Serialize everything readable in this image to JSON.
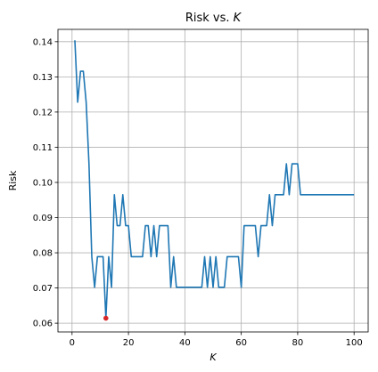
{
  "chart_data": {
    "type": "line",
    "title": "Risk vs. K",
    "title_main": "Risk vs. ",
    "title_var": "K",
    "xlabel": "K",
    "ylabel": "Risk",
    "xlim": [
      -5,
      105
    ],
    "ylim": [
      0.0575,
      0.1435
    ],
    "xticks": [
      0,
      20,
      40,
      60,
      80,
      100
    ],
    "yticks": [
      0.06,
      0.07,
      0.08,
      0.09,
      0.1,
      0.11,
      0.12,
      0.13,
      0.14
    ],
    "ytick_labels": [
      "0.06",
      "0.07",
      "0.08",
      "0.09",
      "0.10",
      "0.11",
      "0.12",
      "0.13",
      "0.14"
    ],
    "grid": true,
    "line_color": "#1f77b4",
    "marker_color": "#d62728",
    "highlight_point": {
      "x": 12,
      "y": 0.0614
    },
    "series": [
      {
        "x": [
          1,
          2,
          3,
          4,
          5,
          6,
          7,
          8,
          9,
          10,
          11,
          12,
          13,
          14,
          15,
          16,
          17,
          18,
          19,
          20,
          21,
          22,
          23,
          24,
          25,
          26,
          27,
          28,
          29,
          30,
          31,
          32,
          33,
          34,
          35,
          36,
          37,
          38,
          39,
          40,
          41,
          42,
          43,
          44,
          45,
          46,
          47,
          48,
          49,
          50,
          51,
          52,
          53,
          54,
          55,
          56,
          57,
          58,
          59,
          60,
          61,
          62,
          63,
          64,
          65,
          66,
          67,
          68,
          69,
          70,
          71,
          72,
          73,
          74,
          75,
          76,
          77,
          78,
          79,
          80,
          81,
          82,
          83,
          84,
          85,
          86,
          87,
          88,
          89,
          90,
          91,
          92,
          93,
          94,
          95,
          96,
          97,
          98,
          99,
          100
        ],
        "values": [
          0.1404,
          0.1228,
          0.1316,
          0.1316,
          0.1228,
          0.1053,
          0.0789,
          0.0702,
          0.0789,
          0.0789,
          0.0789,
          0.0614,
          0.0789,
          0.0702,
          0.0965,
          0.0877,
          0.0877,
          0.0965,
          0.0877,
          0.0877,
          0.0789,
          0.0789,
          0.0789,
          0.0789,
          0.0789,
          0.0877,
          0.0877,
          0.0789,
          0.0877,
          0.0789,
          0.0877,
          0.0877,
          0.0877,
          0.0877,
          0.0702,
          0.0789,
          0.0702,
          0.0702,
          0.0702,
          0.0702,
          0.0702,
          0.0702,
          0.0702,
          0.0702,
          0.0702,
          0.0702,
          0.0789,
          0.0702,
          0.0789,
          0.0702,
          0.0789,
          0.0702,
          0.0702,
          0.0702,
          0.0789,
          0.0789,
          0.0789,
          0.0789,
          0.0789,
          0.0702,
          0.0877,
          0.0877,
          0.0877,
          0.0877,
          0.0877,
          0.0789,
          0.0877,
          0.0877,
          0.0877,
          0.0965,
          0.0877,
          0.0965,
          0.0965,
          0.0965,
          0.0965,
          0.1053,
          0.0965,
          0.1053,
          0.1053,
          0.1053,
          0.0965,
          0.0965,
          0.0965,
          0.0965,
          0.0965,
          0.0965,
          0.0965,
          0.0965,
          0.0965,
          0.0965,
          0.0965,
          0.0965,
          0.0965,
          0.0965,
          0.0965,
          0.0965,
          0.0965,
          0.0965,
          0.0965,
          0.0965
        ]
      }
    ]
  }
}
